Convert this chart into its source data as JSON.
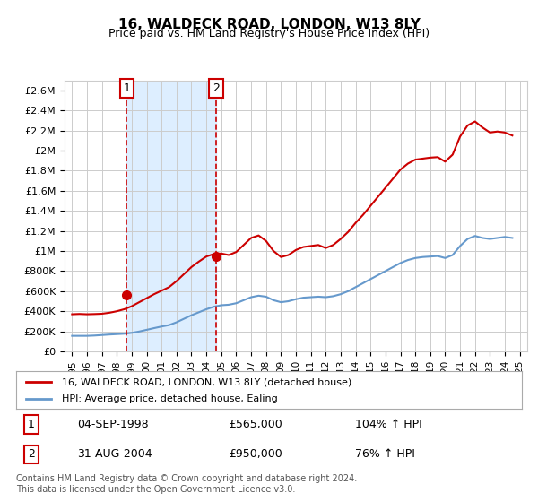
{
  "title": "16, WALDECK ROAD, LONDON, W13 8LY",
  "subtitle": "Price paid vs. HM Land Registry's House Price Index (HPI)",
  "legend_line1": "16, WALDECK ROAD, LONDON, W13 8LY (detached house)",
  "legend_line2": "HPI: Average price, detached house, Ealing",
  "footnote": "Contains HM Land Registry data © Crown copyright and database right 2024.\nThis data is licensed under the Open Government Licence v3.0.",
  "sale1_date": "04-SEP-1998",
  "sale1_price": "£565,000",
  "sale1_hpi": "104% ↑ HPI",
  "sale2_date": "31-AUG-2004",
  "sale2_price": "£950,000",
  "sale2_hpi": "76% ↑ HPI",
  "red_color": "#cc0000",
  "blue_color": "#6699cc",
  "shaded_color": "#ddeeff",
  "grid_color": "#cccccc",
  "bg_color": "#ffffff",
  "ylim": [
    0,
    2700000
  ],
  "yticks": [
    0,
    200000,
    400000,
    600000,
    800000,
    1000000,
    1200000,
    1400000,
    1600000,
    1800000,
    2000000,
    2200000,
    2400000,
    2600000
  ],
  "ytick_labels": [
    "£0",
    "£200K",
    "£400K",
    "£600K",
    "£800K",
    "£1M",
    "£1.2M",
    "£1.4M",
    "£1.6M",
    "£1.8M",
    "£2M",
    "£2.2M",
    "£2.4M",
    "£2.6M"
  ],
  "sale1_x": 1998.67,
  "sale1_y": 565000,
  "sale2_x": 2004.66,
  "sale2_y": 950000,
  "hpi_years": [
    1995,
    1995.5,
    1996,
    1996.5,
    1997,
    1997.5,
    1998,
    1998.5,
    1999,
    1999.5,
    2000,
    2000.5,
    2001,
    2001.5,
    2002,
    2002.5,
    2003,
    2003.5,
    2004,
    2004.5,
    2005,
    2005.5,
    2006,
    2006.5,
    2007,
    2007.5,
    2008,
    2008.5,
    2009,
    2009.5,
    2010,
    2010.5,
    2011,
    2011.5,
    2012,
    2012.5,
    2013,
    2013.5,
    2014,
    2014.5,
    2015,
    2015.5,
    2016,
    2016.5,
    2017,
    2017.5,
    2018,
    2018.5,
    2019,
    2019.5,
    2020,
    2020.5,
    2021,
    2021.5,
    2022,
    2022.5,
    2023,
    2023.5,
    2024,
    2024.5
  ],
  "hpi_values": [
    155000,
    155000,
    155000,
    158000,
    163000,
    168000,
    172000,
    176000,
    185000,
    198000,
    215000,
    232000,
    248000,
    262000,
    290000,
    325000,
    360000,
    390000,
    420000,
    445000,
    460000,
    465000,
    480000,
    510000,
    540000,
    555000,
    545000,
    510000,
    490000,
    500000,
    520000,
    535000,
    540000,
    545000,
    540000,
    550000,
    570000,
    600000,
    640000,
    680000,
    720000,
    760000,
    800000,
    840000,
    880000,
    910000,
    930000,
    940000,
    945000,
    950000,
    930000,
    960000,
    1050000,
    1120000,
    1150000,
    1130000,
    1120000,
    1130000,
    1140000,
    1130000
  ],
  "red_years": [
    1995,
    1995.5,
    1996,
    1996.5,
    1997,
    1997.5,
    1998,
    1998.5,
    1999,
    1999.5,
    2000,
    2000.5,
    2001,
    2001.5,
    2002,
    2002.5,
    2003,
    2003.5,
    2004,
    2004.5,
    2005,
    2005.5,
    2006,
    2006.5,
    2007,
    2007.5,
    2008,
    2008.5,
    2009,
    2009.5,
    2010,
    2010.5,
    2011,
    2011.5,
    2012,
    2012.5,
    2013,
    2013.5,
    2014,
    2014.5,
    2015,
    2015.5,
    2016,
    2016.5,
    2017,
    2017.5,
    2018,
    2018.5,
    2019,
    2019.5,
    2020,
    2020.5,
    2021,
    2021.5,
    2022,
    2022.5,
    2023,
    2023.5,
    2024,
    2024.5
  ],
  "red_values": [
    370000,
    373000,
    370000,
    372000,
    375000,
    385000,
    400000,
    420000,
    450000,
    490000,
    530000,
    570000,
    605000,
    640000,
    700000,
    770000,
    840000,
    895000,
    945000,
    970000,
    975000,
    960000,
    990000,
    1060000,
    1130000,
    1155000,
    1100000,
    1000000,
    940000,
    960000,
    1010000,
    1040000,
    1050000,
    1060000,
    1030000,
    1060000,
    1120000,
    1190000,
    1280000,
    1360000,
    1450000,
    1540000,
    1630000,
    1720000,
    1810000,
    1870000,
    1910000,
    1920000,
    1930000,
    1935000,
    1890000,
    1960000,
    2140000,
    2250000,
    2290000,
    2230000,
    2180000,
    2190000,
    2180000,
    2150000
  ],
  "xlim": [
    1994.5,
    2025.5
  ],
  "xticks": [
    1995,
    1996,
    1997,
    1998,
    1999,
    2000,
    2001,
    2002,
    2003,
    2004,
    2005,
    2006,
    2007,
    2008,
    2009,
    2010,
    2011,
    2012,
    2013,
    2014,
    2015,
    2016,
    2017,
    2018,
    2019,
    2020,
    2021,
    2022,
    2023,
    2024,
    2025
  ]
}
